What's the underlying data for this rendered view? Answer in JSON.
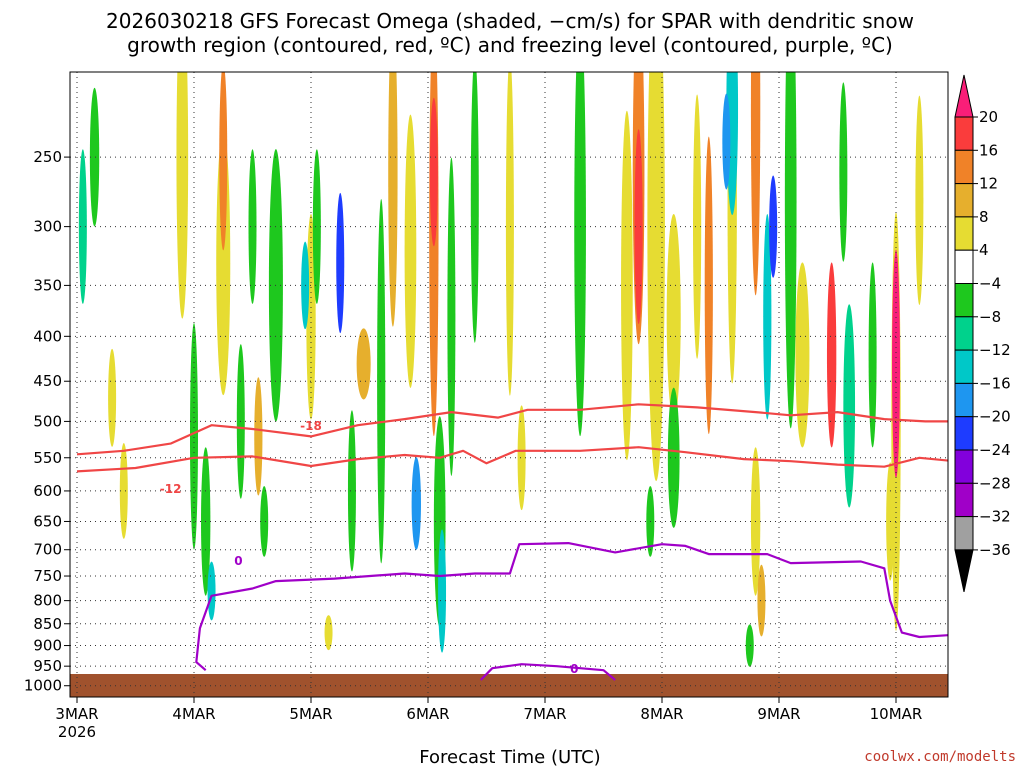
{
  "chart_data": {
    "type": "heatmap",
    "title_line1": "2026030218 GFS Forecast Omega (shaded, −cm/s) for SPAR with dendritic snow",
    "title_line2": "growth region (contoured, red, ºC) and freezing level (contoured, purple, ºC)",
    "xlabel": "Forecast Time (UTC)",
    "credit": "coolwx.com/modelts",
    "x_range_days": [
      0,
      7.5
    ],
    "x_ticks": [
      {
        "pos": 0,
        "label": "3MAR",
        "sub": "2026"
      },
      {
        "pos": 1,
        "label": "4MAR"
      },
      {
        "pos": 2,
        "label": "5MAR"
      },
      {
        "pos": 3,
        "label": "6MAR"
      },
      {
        "pos": 4,
        "label": "7MAR"
      },
      {
        "pos": 5,
        "label": "8MAR"
      },
      {
        "pos": 6,
        "label": "9MAR"
      },
      {
        "pos": 7,
        "label": "10MAR"
      }
    ],
    "y_axis": "pressure (hPa)",
    "y_range_hpa": [
      200,
      1030
    ],
    "y_ticks": [
      "250",
      "300",
      "350",
      "400",
      "450",
      "500",
      "550",
      "600",
      "650",
      "700",
      "750",
      "800",
      "850",
      "900",
      "950",
      "1000"
    ],
    "colorbar_levels": [
      "20",
      "16",
      "12",
      "8",
      "4",
      "−4",
      "−8",
      "−12",
      "−16",
      "−20",
      "−24",
      "−28",
      "−32",
      "−36"
    ],
    "colorbar_colors": [
      "#fa1e78",
      "#fa3c3c",
      "#f08228",
      "#e6af2d",
      "#e6dc32",
      "#ffffff",
      "#1ec81e",
      "#00d28c",
      "#00c8c8",
      "#1e96f0",
      "#1e3cff",
      "#8200dc",
      "#a000c8",
      "#a0a0a0",
      "#000000"
    ],
    "contours": [
      {
        "name": "dgz-top-minus18",
        "label": "-18",
        "color": "#f04646",
        "points": [
          [
            0,
            545
          ],
          [
            0.4,
            540
          ],
          [
            0.8,
            530
          ],
          [
            1.15,
            505
          ],
          [
            1.5,
            510
          ],
          [
            2,
            520
          ],
          [
            2.4,
            505
          ],
          [
            2.8,
            497
          ],
          [
            3.2,
            488
          ],
          [
            3.6,
            495
          ],
          [
            3.85,
            485
          ],
          [
            4.3,
            485
          ],
          [
            4.8,
            478
          ],
          [
            5.3,
            482
          ],
          [
            5.8,
            488
          ],
          [
            6.1,
            492
          ],
          [
            6.5,
            488
          ],
          [
            6.9,
            497
          ],
          [
            7.25,
            500
          ],
          [
            7.5,
            500
          ]
        ],
        "label_pos": [
          2.0,
          507
        ]
      },
      {
        "name": "dgz-bottom-minus12",
        "label": "-12",
        "color": "#f04646",
        "points": [
          [
            0,
            570
          ],
          [
            0.5,
            565
          ],
          [
            1,
            550
          ],
          [
            1.5,
            548
          ],
          [
            2,
            562
          ],
          [
            2.4,
            552
          ],
          [
            2.8,
            546
          ],
          [
            3.1,
            550
          ],
          [
            3.3,
            540
          ],
          [
            3.5,
            558
          ],
          [
            3.75,
            540
          ],
          [
            4.3,
            540
          ],
          [
            4.8,
            535
          ],
          [
            5.2,
            542
          ],
          [
            5.7,
            552
          ],
          [
            6.1,
            555
          ],
          [
            6.5,
            560
          ],
          [
            6.9,
            563
          ],
          [
            7.2,
            550
          ],
          [
            7.5,
            555
          ]
        ],
        "label_pos": [
          0.8,
          598
        ]
      },
      {
        "name": "freezing-level-0",
        "label": "0",
        "color": "#a000c8",
        "points": [
          [
            1.1,
            960
          ],
          [
            1.02,
            940
          ],
          [
            1.05,
            860
          ],
          [
            1.15,
            790
          ],
          [
            1.5,
            775
          ],
          [
            1.7,
            760
          ],
          [
            2.2,
            755
          ],
          [
            2.8,
            745
          ],
          [
            3.1,
            750
          ],
          [
            3.4,
            745
          ],
          [
            3.7,
            745
          ],
          [
            3.78,
            690
          ],
          [
            4.2,
            688
          ],
          [
            4.6,
            705
          ],
          [
            5,
            690
          ],
          [
            5.2,
            693
          ],
          [
            5.4,
            708
          ],
          [
            5.9,
            708
          ],
          [
            6.1,
            725
          ],
          [
            6.7,
            722
          ],
          [
            6.9,
            735
          ],
          [
            6.95,
            800
          ],
          [
            7.05,
            870
          ],
          [
            7.2,
            880
          ],
          [
            7.5,
            875
          ]
        ],
        "label_pos": [
          1.38,
          722
        ]
      },
      {
        "name": "freezing-level-0-surface-pocket",
        "label": "0",
        "color": "#a000c8",
        "points": [
          [
            3.45,
            985
          ],
          [
            3.55,
            955
          ],
          [
            3.8,
            945
          ],
          [
            4.1,
            950
          ],
          [
            4.5,
            960
          ],
          [
            4.6,
            985
          ]
        ],
        "label_pos": [
          4.25,
          958
        ]
      }
    ]
  }
}
